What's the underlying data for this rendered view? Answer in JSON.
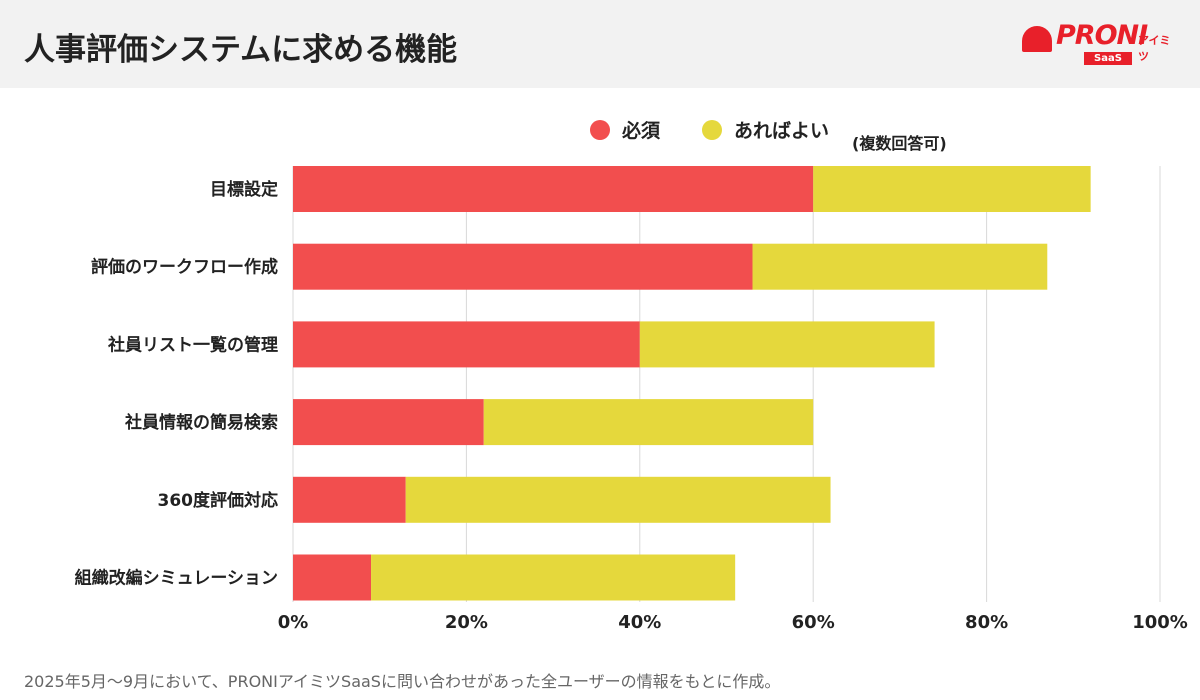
{
  "header": {
    "title": "人事評価システムに求める機能"
  },
  "logo": {
    "text": "PRONIアイミツ SaaS"
  },
  "note": "(複数回答可)",
  "footnote": "2025年5月〜9月において、PRONIアイミツSaaSに問い合わせがあった全ユーザーの情報をもとに作成。",
  "chart_data": {
    "type": "bar",
    "orientation": "horizontal",
    "stacked": true,
    "categories": [
      "目標設定",
      "評価のワークフロー作成",
      "社員リスト一覧の管理",
      "社員情報の簡易検索",
      "360度評価対応",
      "組織改編シミュレーション"
    ],
    "series": [
      {
        "name": "必須",
        "color": "#f24e4e",
        "values": [
          60,
          53,
          40,
          22,
          13,
          9
        ]
      },
      {
        "name": "あればよい",
        "color": "#e5d83c",
        "values": [
          32,
          34,
          34,
          38,
          49,
          42
        ]
      }
    ],
    "xlim": [
      0,
      100
    ],
    "xticks": [
      "0%",
      "20%",
      "40%",
      "60%",
      "80%",
      "100%"
    ],
    "grid": true,
    "legend": "top-right"
  }
}
